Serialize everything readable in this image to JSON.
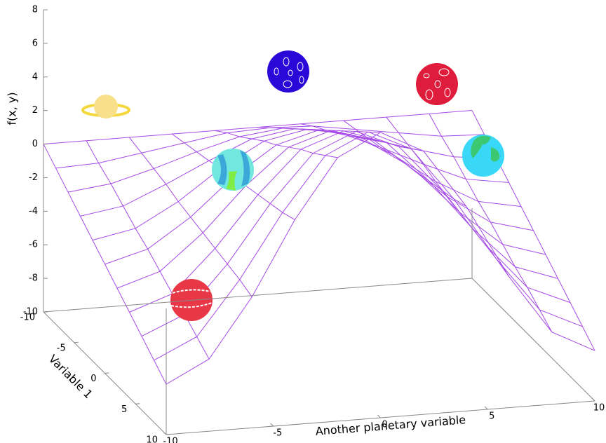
{
  "chart_data": {
    "type": "surface",
    "xlabel": "Another planetary variable",
    "ylabel": "Variable 1",
    "zlabel": "f(x, y)",
    "color": "#a54ae8",
    "x": [
      -10,
      -8,
      -6,
      -4,
      -2,
      0,
      2,
      4,
      6,
      8,
      10
    ],
    "y": [
      -10,
      -8,
      -6,
      -4,
      -2,
      0,
      2,
      4,
      6,
      8,
      10
    ],
    "z": [
      [
        0,
        0,
        0,
        0,
        0,
        0,
        0,
        0,
        0,
        0,
        0
      ],
      [
        -0.7,
        -0.6,
        -0.2,
        0.2,
        0.6,
        0.7,
        0.6,
        0.2,
        -0.2,
        -0.6,
        -0.7
      ],
      [
        -1.4,
        -1.1,
        -0.4,
        0.4,
        1.1,
        1.4,
        1.1,
        0.4,
        -0.4,
        -1.1,
        -1.4
      ],
      [
        -2.1,
        -1.7,
        -0.6,
        0.6,
        1.7,
        2.1,
        1.7,
        0.6,
        -0.6,
        -1.7,
        -2.1
      ],
      [
        -2.8,
        -2.3,
        -0.9,
        0.9,
        2.3,
        2.8,
        2.3,
        0.9,
        -0.9,
        -2.3,
        -2.8
      ],
      [
        -3.5,
        -2.8,
        -1.1,
        1.1,
        2.8,
        3.5,
        2.8,
        1.1,
        -1.1,
        -2.8,
        -3.5
      ],
      [
        -4.2,
        -3.4,
        -1.3,
        1.3,
        3.4,
        4.2,
        3.4,
        1.3,
        -1.3,
        -3.4,
        -4.2
      ],
      [
        -4.9,
        -4.0,
        -1.5,
        1.5,
        4.0,
        4.9,
        4.0,
        1.5,
        -1.5,
        -4.0,
        -4.9
      ],
      [
        -5.6,
        -4.5,
        -1.7,
        1.7,
        4.5,
        5.6,
        4.5,
        1.7,
        -1.7,
        -4.5,
        -5.6
      ],
      [
        -6.3,
        -5.1,
        -1.9,
        1.9,
        5.1,
        6.3,
        5.1,
        1.9,
        -1.9,
        -5.1,
        -6.3
      ],
      [
        -7,
        -5.7,
        -2.2,
        2.2,
        5.7,
        7,
        5.7,
        2.2,
        -2.2,
        -5.7,
        -7
      ]
    ],
    "xlim": [
      -10,
      10
    ],
    "ylim": [
      -10,
      10
    ],
    "zlim": [
      -10,
      8
    ],
    "xticks": [
      -10,
      -5,
      0,
      5,
      10
    ],
    "yticks": [
      -10,
      -5,
      0,
      5,
      10
    ],
    "zticks": [
      -10,
      -8,
      -6,
      -4,
      -2,
      0,
      2,
      4,
      6,
      8
    ]
  }
}
